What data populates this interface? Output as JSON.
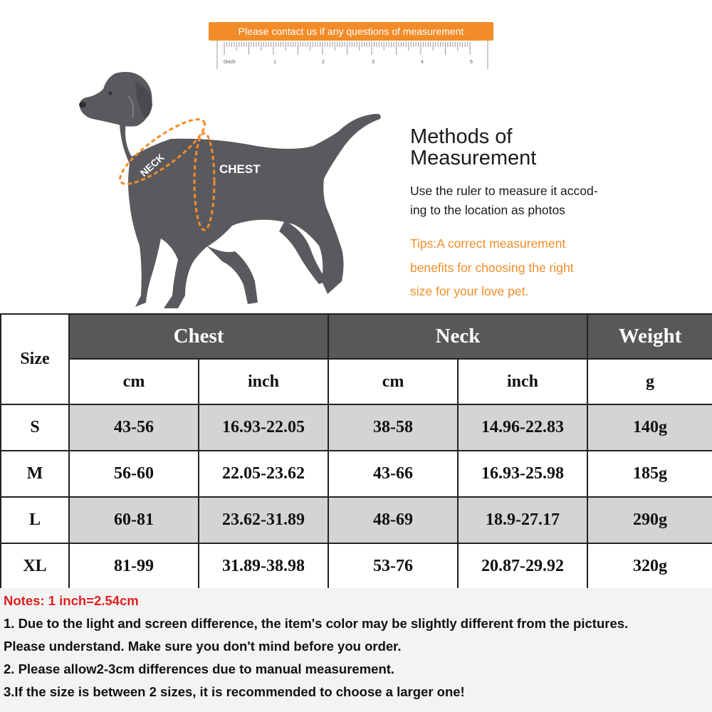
{
  "banner": {
    "text": "Please contact us if any questions of measurement"
  },
  "ruler": {
    "unit_label": "0inch",
    "ticks": [
      "1",
      "2",
      "3",
      "4",
      "5"
    ]
  },
  "figure": {
    "neck_label": "NECK",
    "chest_label": "CHEST"
  },
  "methods": {
    "title_line1": "Methods of",
    "title_line2": "Measurement",
    "desc_line1": "Use the ruler to measure it accod-",
    "desc_line2": "ing to the location as photos",
    "tips_line1": "Tips:A correct measurement",
    "tips_line2": "benefits for choosing the right",
    "tips_line3": "size for your love pet."
  },
  "table": {
    "size_header": "Size",
    "groups": {
      "chest": "Chest",
      "neck": "Neck",
      "weight": "Weight"
    },
    "units": {
      "chest_cm": "cm",
      "chest_inch": "inch",
      "neck_cm": "cm",
      "neck_inch": "inch",
      "weight_g": "g"
    },
    "rows": [
      {
        "size": "S",
        "chest_cm": "43-56",
        "chest_inch": "16.93-22.05",
        "neck_cm": "38-58",
        "neck_inch": "14.96-22.83",
        "weight": "140g"
      },
      {
        "size": "M",
        "chest_cm": "56-60",
        "chest_inch": "22.05-23.62",
        "neck_cm": "43-66",
        "neck_inch": "16.93-25.98",
        "weight": "185g"
      },
      {
        "size": "L",
        "chest_cm": "60-81",
        "chest_inch": "23.62-31.89",
        "neck_cm": "48-69",
        "neck_inch": "18.9-27.17",
        "weight": "290g"
      },
      {
        "size": "XL",
        "chest_cm": "81-99",
        "chest_inch": "31.89-38.98",
        "neck_cm": "53-76",
        "neck_inch": "20.87-29.92",
        "weight": "320g"
      }
    ]
  },
  "notes": {
    "title": "Notes: 1 inch=2.54cm",
    "line1": "1. Due to the light and screen difference, the item's color may be slightly different from the pictures.",
    "line1b": "Please understand. Make sure you don't mind before you order.",
    "line2": "2. Please allow2-3cm differences due to manual measurement.",
    "line3": "3.If the size is between 2 sizes, it is recommended to choose a larger one!"
  },
  "colors": {
    "accent": "#f28c28",
    "header_gray": "#585858",
    "row_shade": "#d4d4d4",
    "note_red": "#e0201e",
    "dog": "#5a5a5e"
  }
}
